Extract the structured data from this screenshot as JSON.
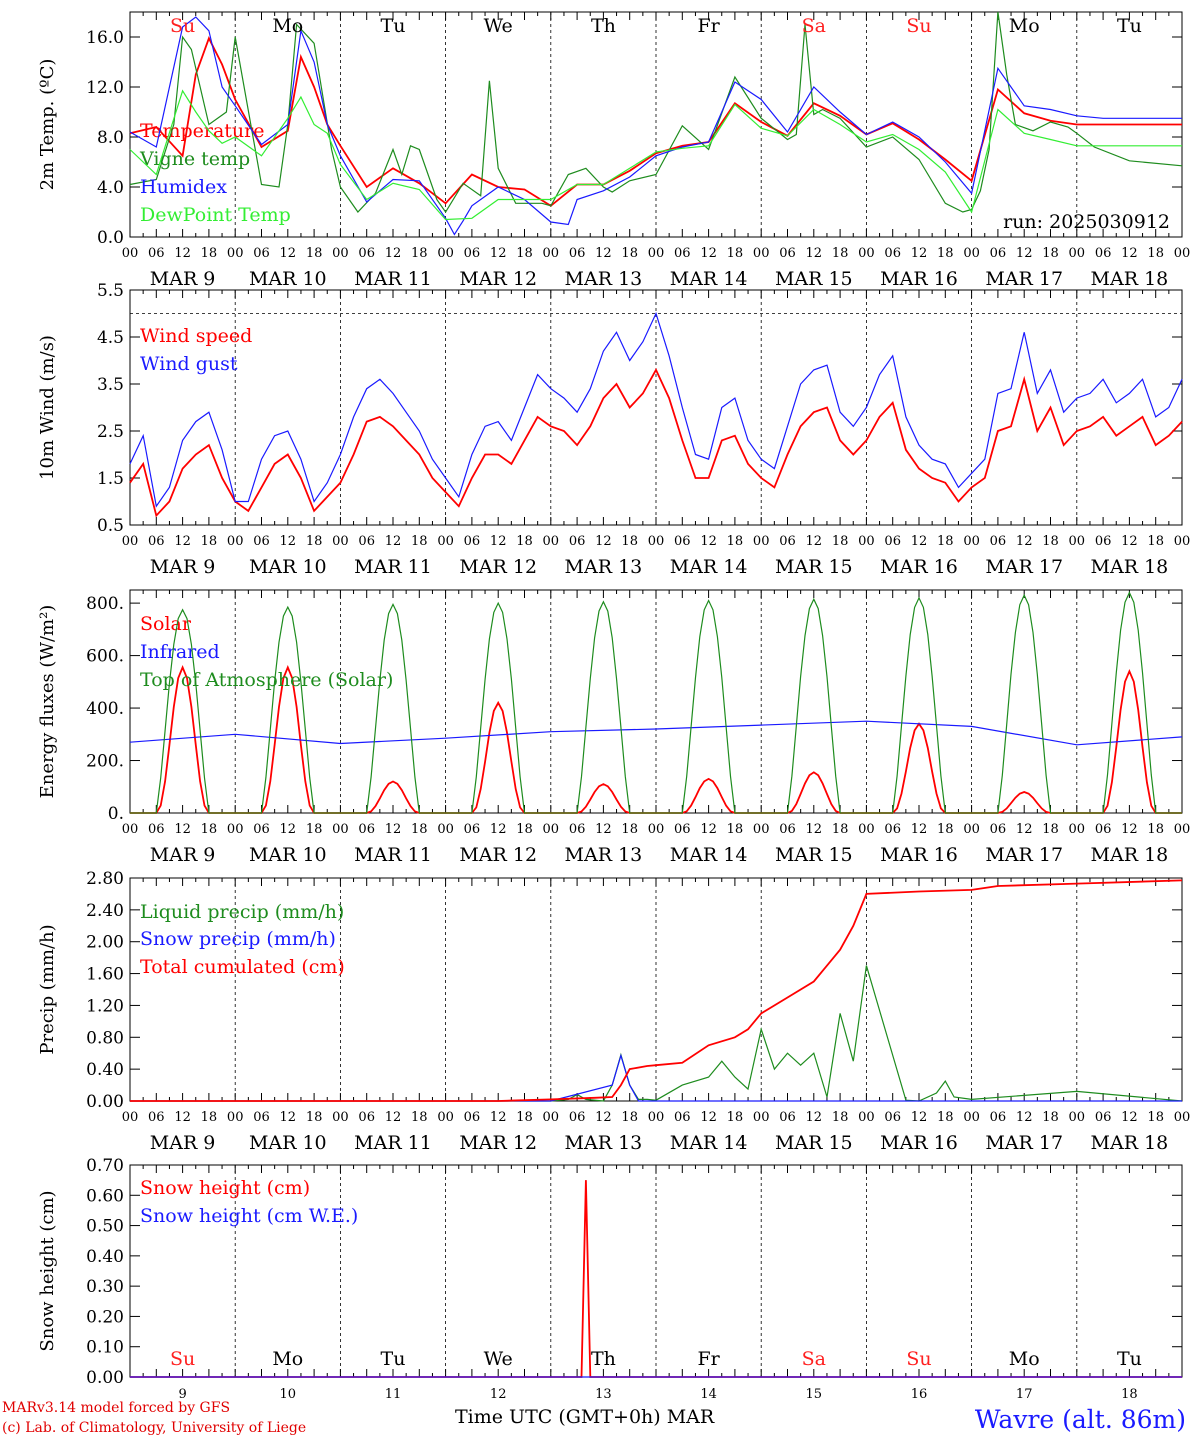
{
  "run_label": "run: 2025030912",
  "credits": [
    "MARv3.14 model forced by GFS",
    "(c) Lab. of Climatology, University of Liege"
  ],
  "station": "Wavre (alt. 86m)",
  "x_title": "Time UTC (GMT+0h) MAR",
  "day_dates": [
    "MAR  9",
    "MAR 10",
    "MAR 11",
    "MAR 12",
    "MAR 13",
    "MAR 14",
    "MAR 15",
    "MAR 16",
    "MAR 17",
    "MAR 18"
  ],
  "day_numbers": [
    "9",
    "10",
    "11",
    "12",
    "13",
    "14",
    "15",
    "16",
    "17",
    "18"
  ],
  "weekdays": [
    "Su",
    "Mo",
    "Tu",
    "We",
    "Th",
    "Fr",
    "Sa",
    "Su",
    "Mo",
    "Tu"
  ],
  "weekend_color": "#ff2020",
  "hour_ticks": [
    "00",
    "06",
    "12",
    "18"
  ],
  "colors": {
    "red": "#ff0000",
    "green": "#1e8c1e",
    "blue": "#1a1aff",
    "lightgreen": "#33ee33"
  },
  "chart_data": [
    {
      "id": "temperature",
      "type": "line",
      "ylabel": "2m Temp. (ºC)",
      "ylim": [
        0,
        18
      ],
      "yticks": [
        "0.0",
        "4.0",
        "8.0",
        "12.0",
        "16.0"
      ],
      "x_hours_range": [
        0,
        240
      ],
      "series": [
        {
          "name": "Temperature",
          "color": "red",
          "x": [
            0,
            6,
            12,
            15,
            18,
            21,
            24,
            30,
            36,
            39,
            42,
            45,
            48,
            54,
            60,
            66,
            72,
            78,
            84,
            90,
            96,
            102,
            108,
            114,
            120,
            126,
            132,
            138,
            144,
            150,
            156,
            162,
            168,
            174,
            180,
            186,
            192,
            198,
            204,
            210,
            216,
            222,
            228,
            234,
            240
          ],
          "y": [
            8.3,
            8.8,
            6.5,
            13.0,
            15.9,
            13.8,
            11.0,
            7.2,
            8.5,
            14.4,
            12.0,
            9.0,
            7.3,
            4.0,
            5.5,
            4.3,
            2.7,
            5.0,
            4.0,
            3.8,
            2.5,
            4.2,
            4.2,
            5.3,
            6.7,
            7.3,
            7.6,
            10.7,
            9.2,
            8.1,
            10.7,
            9.7,
            8.2,
            9.1,
            7.8,
            6.2,
            4.5,
            11.8,
            9.9,
            9.3,
            9.0,
            9.0,
            9.0,
            9.0,
            9.0
          ]
        },
        {
          "name": "Vigne temp",
          "color": "green",
          "x": [
            0,
            6,
            10,
            12,
            14,
            18,
            22,
            24,
            30,
            34,
            36,
            38,
            42,
            46,
            48,
            52,
            56,
            60,
            62,
            64,
            66,
            70,
            72,
            76,
            80,
            82,
            84,
            88,
            94,
            96,
            100,
            104,
            108,
            110,
            114,
            120,
            126,
            132,
            138,
            144,
            150,
            152,
            154,
            156,
            158,
            162,
            168,
            174,
            180,
            186,
            190,
            192,
            194,
            196,
            198,
            200,
            202,
            206,
            210,
            214,
            216,
            220,
            228,
            240
          ],
          "y": [
            4.2,
            4.6,
            9.0,
            16.0,
            15.0,
            9.0,
            10.0,
            16.0,
            4.2,
            4.0,
            9.0,
            17.0,
            15.5,
            7.0,
            4.0,
            2.0,
            3.5,
            7.0,
            5.0,
            7.3,
            7.0,
            3.0,
            2.0,
            4.3,
            3.3,
            12.5,
            5.5,
            2.7,
            2.7,
            2.5,
            5.0,
            5.5,
            4.0,
            3.6,
            4.5,
            5.0,
            8.9,
            7.0,
            12.8,
            9.5,
            7.8,
            8.2,
            17.0,
            9.8,
            10.2,
            9.5,
            7.2,
            8.0,
            6.2,
            2.7,
            2.0,
            2.2,
            3.7,
            7.0,
            18.0,
            13.0,
            9.0,
            8.5,
            9.2,
            8.8,
            8.3,
            7.2,
            6.1,
            5.7
          ]
        },
        {
          "name": "Humidex",
          "color": "blue",
          "x": [
            0,
            6,
            12,
            15,
            18,
            21,
            24,
            30,
            36,
            39,
            42,
            45,
            48,
            54,
            60,
            66,
            72,
            74,
            76,
            78,
            84,
            90,
            96,
            100,
            102,
            108,
            114,
            120,
            126,
            132,
            138,
            144,
            150,
            156,
            162,
            168,
            174,
            180,
            186,
            192,
            198,
            204,
            210,
            216,
            222,
            228,
            234,
            240
          ],
          "y": [
            8.4,
            7.2,
            16.8,
            17.6,
            16.5,
            12.0,
            10.5,
            7.4,
            9.0,
            16.5,
            14.0,
            9.0,
            6.5,
            2.8,
            4.6,
            4.5,
            1.5,
            0.2,
            1.3,
            2.5,
            4.0,
            3.0,
            1.2,
            1.0,
            3.0,
            3.7,
            4.8,
            6.5,
            7.2,
            7.6,
            12.4,
            11.0,
            8.4,
            12.0,
            10.0,
            8.2,
            9.2,
            8.0,
            6.0,
            3.5,
            13.5,
            10.5,
            10.2,
            9.7,
            9.5,
            9.5,
            9.5,
            9.5
          ]
        },
        {
          "name": "DewPoint Temp",
          "color": "lightgreen",
          "x": [
            0,
            6,
            12,
            15,
            18,
            21,
            24,
            30,
            36,
            39,
            42,
            45,
            48,
            54,
            60,
            66,
            72,
            78,
            84,
            90,
            96,
            102,
            108,
            114,
            120,
            126,
            132,
            138,
            144,
            150,
            156,
            162,
            168,
            174,
            180,
            186,
            192,
            198,
            204,
            210,
            216,
            222,
            228,
            234,
            240
          ],
          "y": [
            7.0,
            5.0,
            11.7,
            10.0,
            8.5,
            7.5,
            8.0,
            6.5,
            9.5,
            11.2,
            9.0,
            8.3,
            5.8,
            3.0,
            4.3,
            3.8,
            1.4,
            1.5,
            3.0,
            3.0,
            3.0,
            4.2,
            4.2,
            5.5,
            6.8,
            7.1,
            7.3,
            10.6,
            8.7,
            8.1,
            10.2,
            9.0,
            7.6,
            8.2,
            7.0,
            5.2,
            2.0,
            10.2,
            8.3,
            7.8,
            7.3,
            7.3,
            7.3,
            7.3,
            7.3
          ]
        }
      ]
    },
    {
      "id": "wind",
      "type": "line",
      "ylabel": "10m Wind (m/s)",
      "ylim": [
        0.5,
        5.5
      ],
      "yticks": [
        "0.5",
        "1.5",
        "2.5",
        "3.5",
        "4.5",
        "5.5"
      ],
      "ref_line": 5.0,
      "series": [
        {
          "name": "Wind speed",
          "color": "red",
          "x": [
            0,
            3,
            6,
            9,
            12,
            15,
            18,
            21,
            24,
            27,
            30,
            33,
            36,
            39,
            42,
            45,
            48,
            51,
            54,
            57,
            60,
            63,
            66,
            69,
            72,
            75,
            78,
            81,
            84,
            87,
            90,
            93,
            96,
            99,
            102,
            105,
            108,
            111,
            114,
            117,
            120,
            123,
            126,
            129,
            132,
            135,
            138,
            141,
            144,
            147,
            150,
            153,
            156,
            159,
            162,
            165,
            168,
            171,
            174,
            177,
            180,
            183,
            186,
            189,
            192,
            195,
            198,
            201,
            204,
            207,
            210,
            213,
            216,
            219,
            222,
            225,
            228,
            231,
            234,
            237,
            240
          ],
          "y": [
            1.4,
            1.8,
            0.7,
            1.0,
            1.7,
            2.0,
            2.2,
            1.5,
            1.0,
            0.8,
            1.3,
            1.8,
            2.0,
            1.5,
            0.8,
            1.1,
            1.4,
            2.0,
            2.7,
            2.8,
            2.6,
            2.3,
            2.0,
            1.5,
            1.2,
            0.9,
            1.5,
            2.0,
            2.0,
            1.8,
            2.3,
            2.8,
            2.6,
            2.5,
            2.2,
            2.6,
            3.2,
            3.5,
            3.0,
            3.3,
            3.8,
            3.2,
            2.3,
            1.5,
            1.5,
            2.3,
            2.4,
            1.8,
            1.5,
            1.3,
            2.0,
            2.6,
            2.9,
            3.0,
            2.3,
            2.0,
            2.3,
            2.8,
            3.1,
            2.1,
            1.7,
            1.5,
            1.4,
            1.0,
            1.3,
            1.5,
            2.5,
            2.6,
            3.6,
            2.5,
            3.0,
            2.2,
            2.5,
            2.6,
            2.8,
            2.4,
            2.6,
            2.8,
            2.2,
            2.4,
            2.7
          ]
        },
        {
          "name": "Wind gust",
          "color": "blue",
          "x": [
            0,
            3,
            6,
            9,
            12,
            15,
            18,
            21,
            24,
            27,
            30,
            33,
            36,
            39,
            42,
            45,
            48,
            51,
            54,
            57,
            60,
            63,
            66,
            69,
            72,
            75,
            78,
            81,
            84,
            87,
            90,
            93,
            96,
            99,
            102,
            105,
            108,
            111,
            114,
            117,
            120,
            123,
            126,
            129,
            132,
            135,
            138,
            141,
            144,
            147,
            150,
            153,
            156,
            159,
            162,
            165,
            168,
            171,
            174,
            177,
            180,
            183,
            186,
            189,
            192,
            195,
            198,
            201,
            204,
            207,
            210,
            213,
            216,
            219,
            222,
            225,
            228,
            231,
            234,
            237,
            240
          ],
          "y": [
            1.8,
            2.4,
            0.9,
            1.3,
            2.3,
            2.7,
            2.9,
            2.1,
            1.0,
            1.0,
            1.9,
            2.4,
            2.5,
            1.9,
            1.0,
            1.4,
            2.0,
            2.8,
            3.4,
            3.6,
            3.3,
            2.9,
            2.5,
            1.9,
            1.5,
            1.1,
            2.0,
            2.6,
            2.7,
            2.3,
            3.0,
            3.7,
            3.4,
            3.2,
            2.9,
            3.4,
            4.2,
            4.6,
            4.0,
            4.4,
            5.0,
            4.1,
            3.0,
            2.0,
            1.9,
            3.0,
            3.2,
            2.3,
            1.9,
            1.7,
            2.6,
            3.5,
            3.8,
            3.9,
            2.9,
            2.6,
            3.0,
            3.7,
            4.1,
            2.8,
            2.2,
            1.9,
            1.8,
            1.3,
            1.6,
            1.9,
            3.3,
            3.4,
            4.6,
            3.3,
            3.8,
            2.9,
            3.2,
            3.3,
            3.6,
            3.1,
            3.3,
            3.6,
            2.8,
            3.0,
            3.6
          ]
        }
      ]
    },
    {
      "id": "energy",
      "type": "line",
      "ylabel": "Energy fluxes (W/m²)",
      "ylim": [
        0,
        850
      ],
      "yticks": [
        "0.",
        "200.",
        "400.",
        "600.",
        "800."
      ],
      "series": [
        {
          "name": "Solar",
          "color": "red",
          "peaks": [
            555,
            555,
            120,
            420,
            110,
            130,
            155,
            340,
            80,
            540
          ]
        },
        {
          "name": "Infrared",
          "color": "blue",
          "x": [
            0,
            24,
            48,
            72,
            96,
            120,
            144,
            168,
            192,
            216,
            240
          ],
          "y": [
            270,
            300,
            265,
            285,
            310,
            320,
            335,
            350,
            330,
            260,
            290
          ]
        },
        {
          "name": "Top of Atmosphere (Solar)",
          "color": "green",
          "peaks": [
            775,
            785,
            795,
            800,
            805,
            810,
            815,
            820,
            830,
            840
          ]
        }
      ]
    },
    {
      "id": "precip",
      "type": "line",
      "ylabel": "Precip (mm/h)",
      "ylim": [
        0,
        2.8
      ],
      "yticks": [
        "0.00",
        "0.40",
        "0.80",
        "1.20",
        "1.60",
        "2.00",
        "2.40",
        "2.80"
      ],
      "series": [
        {
          "name": "Liquid precip (mm/h)",
          "color": "green",
          "x": [
            0,
            96,
            100,
            102,
            104,
            108,
            110,
            112,
            114,
            116,
            118,
            120,
            126,
            132,
            135,
            138,
            141,
            144,
            147,
            150,
            153,
            156,
            159,
            162,
            165,
            168,
            177,
            180,
            184,
            186,
            188,
            192,
            216,
            240
          ],
          "y": [
            0,
            0,
            0.02,
            0.08,
            0.02,
            0.0,
            0.2,
            0.58,
            0.2,
            0.02,
            0.02,
            0.01,
            0.2,
            0.3,
            0.5,
            0.3,
            0.15,
            0.9,
            0.4,
            0.6,
            0.45,
            0.6,
            0.05,
            1.1,
            0.5,
            1.7,
            0.01,
            0.0,
            0.1,
            0.25,
            0.05,
            0.02,
            0.12,
            0.0
          ]
        },
        {
          "name": "Snow precip (mm/h)",
          "color": "blue",
          "x": [
            0,
            96,
            110,
            112,
            114,
            116,
            240
          ],
          "y": [
            0,
            0,
            0.2,
            0.57,
            0.2,
            0.0,
            0.0
          ]
        },
        {
          "name": "Total cumulated (cm)",
          "color": "red",
          "x": [
            0,
            84,
            96,
            106,
            110,
            112,
            114,
            118,
            120,
            126,
            132,
            138,
            141,
            144,
            150,
            156,
            159,
            162,
            165,
            168,
            180,
            192,
            198,
            216,
            240
          ],
          "y": [
            0,
            0.0,
            0.02,
            0.04,
            0.05,
            0.2,
            0.4,
            0.44,
            0.45,
            0.48,
            0.7,
            0.8,
            0.9,
            1.1,
            1.3,
            1.5,
            1.7,
            1.9,
            2.2,
            2.6,
            2.63,
            2.65,
            2.7,
            2.73,
            2.77
          ]
        }
      ]
    },
    {
      "id": "snow",
      "type": "line",
      "ylabel": "Snow height (cm)",
      "ylim": [
        0,
        0.7
      ],
      "yticks": [
        "0.00",
        "0.10",
        "0.20",
        "0.30",
        "0.40",
        "0.50",
        "0.60",
        "0.70"
      ],
      "series": [
        {
          "name": "Snow height (cm)",
          "color": "red",
          "x": [
            0,
            103,
            104,
            105,
            240
          ],
          "y": [
            0,
            0,
            0.65,
            0,
            0
          ]
        },
        {
          "name": "Snow height (cm W.E.)",
          "color": "blue",
          "x": [
            0,
            240
          ],
          "y": [
            0,
            0
          ]
        }
      ]
    }
  ]
}
